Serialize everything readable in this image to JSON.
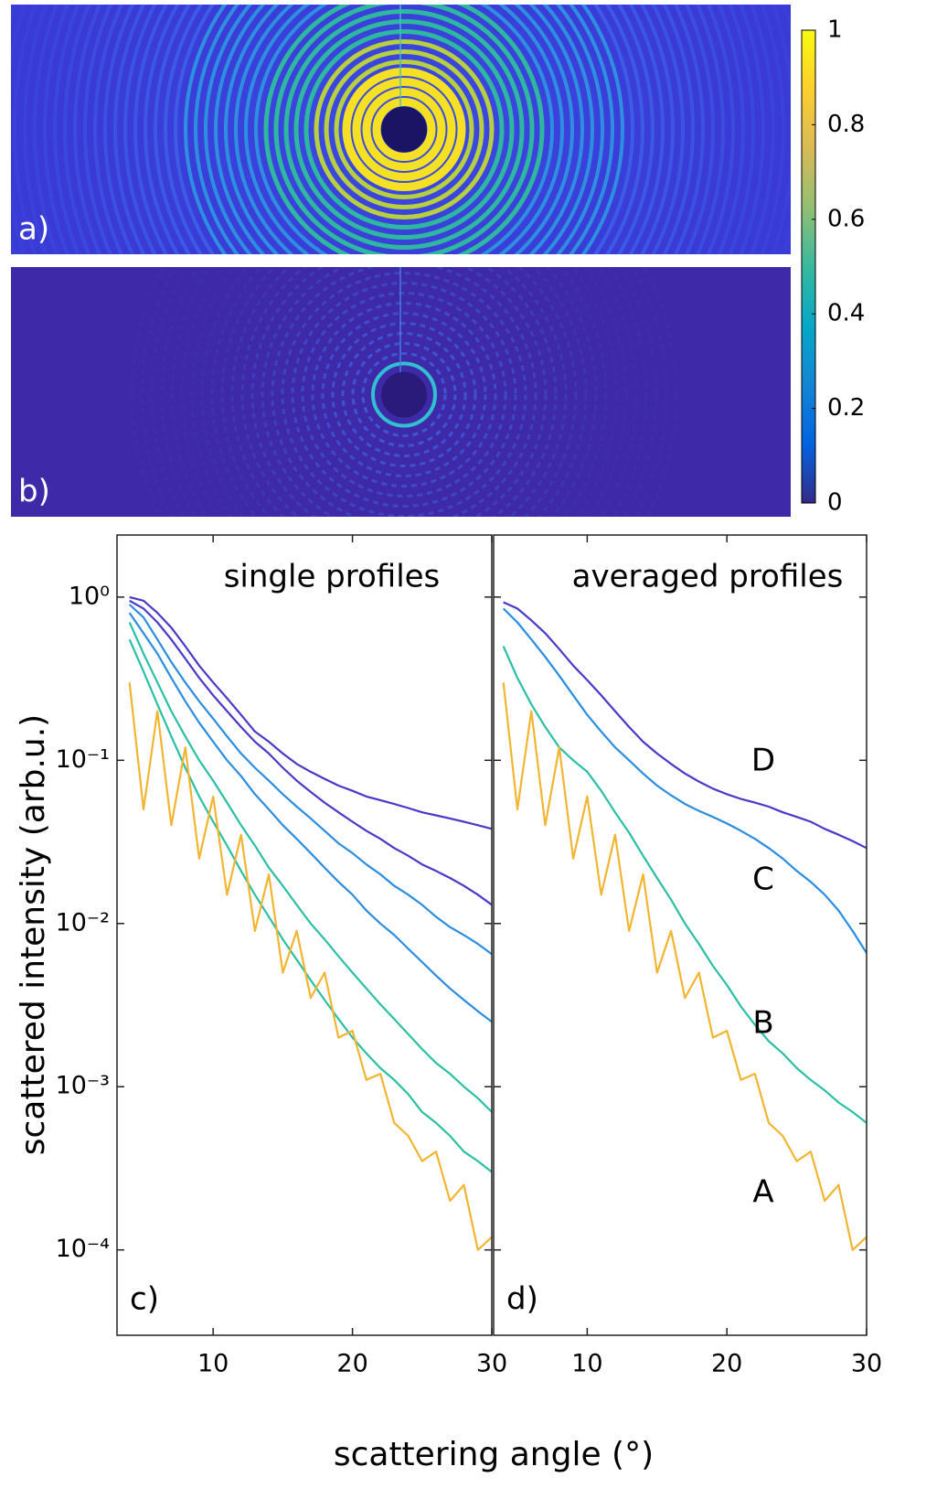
{
  "chart_data": [
    {
      "type": "image",
      "label": "a)"
    },
    {
      "type": "image",
      "label": "b)"
    },
    {
      "type": "colorbar",
      "clim": [
        0,
        1
      ],
      "ticks": [
        0,
        0.2,
        0.4,
        0.6,
        0.8,
        1
      ]
    },
    {
      "type": "line",
      "annotation": "single profiles",
      "label": "c)",
      "ylabel": "scattered intensity (arb.u.)",
      "xlabel": "scattering angle (°)",
      "log_y": true,
      "xlim": [
        3.1,
        30
      ],
      "ylim": [
        3e-05,
        2.4
      ],
      "xticks": [
        10,
        20,
        30
      ],
      "yticks": [
        {
          "value": 0.0001,
          "label": "10⁻⁴"
        },
        {
          "value": 0.001,
          "label": "10⁻³"
        },
        {
          "value": 0.01,
          "label": "10⁻²"
        },
        {
          "value": 0.1,
          "label": "10⁻¹"
        },
        {
          "value": 1,
          "label": "10⁰"
        }
      ],
      "x": [
        4,
        5,
        6,
        7,
        8,
        9,
        10,
        11,
        12,
        13,
        14,
        15,
        16,
        17,
        18,
        19,
        20,
        21,
        22,
        23,
        24,
        25,
        26,
        27,
        28,
        29,
        30
      ],
      "series": [
        {
          "color": "#4a38c9",
          "values": [
            1.0,
            0.95,
            0.8,
            0.65,
            0.5,
            0.38,
            0.3,
            0.24,
            0.19,
            0.15,
            0.13,
            0.11,
            0.095,
            0.085,
            0.077,
            0.07,
            0.065,
            0.06,
            0.057,
            0.054,
            0.051,
            0.048,
            0.046,
            0.044,
            0.042,
            0.04,
            0.038
          ]
        },
        {
          "color": "#4a38c9",
          "values": [
            0.95,
            0.85,
            0.7,
            0.55,
            0.42,
            0.32,
            0.25,
            0.2,
            0.16,
            0.13,
            0.11,
            0.09,
            0.075,
            0.064,
            0.055,
            0.048,
            0.042,
            0.037,
            0.033,
            0.029,
            0.026,
            0.023,
            0.021,
            0.019,
            0.017,
            0.015,
            0.013
          ]
        },
        {
          "color": "#2a8de0",
          "values": [
            0.9,
            0.75,
            0.55,
            0.4,
            0.3,
            0.23,
            0.18,
            0.14,
            0.11,
            0.09,
            0.075,
            0.062,
            0.052,
            0.044,
            0.037,
            0.031,
            0.027,
            0.023,
            0.02,
            0.017,
            0.015,
            0.013,
            0.011,
            0.0095,
            0.0085,
            0.0075,
            0.0065
          ]
        },
        {
          "color": "#2a8de0",
          "values": [
            0.8,
            0.6,
            0.45,
            0.32,
            0.23,
            0.17,
            0.13,
            0.1,
            0.08,
            0.062,
            0.05,
            0.04,
            0.033,
            0.027,
            0.022,
            0.018,
            0.015,
            0.012,
            0.01,
            0.0085,
            0.007,
            0.0058,
            0.0048,
            0.004,
            0.0034,
            0.0029,
            0.0025
          ]
        },
        {
          "color": "#2bbfa5",
          "values": [
            0.7,
            0.45,
            0.3,
            0.2,
            0.14,
            0.1,
            0.075,
            0.055,
            0.04,
            0.03,
            0.022,
            0.017,
            0.013,
            0.01,
            0.008,
            0.0063,
            0.005,
            0.004,
            0.0032,
            0.0026,
            0.0021,
            0.0017,
            0.0014,
            0.0012,
            0.001,
            0.00085,
            0.0007
          ]
        },
        {
          "color": "#2bbfa5",
          "values": [
            0.55,
            0.35,
            0.22,
            0.14,
            0.09,
            0.06,
            0.042,
            0.03,
            0.021,
            0.015,
            0.011,
            0.008,
            0.006,
            0.0045,
            0.0034,
            0.0026,
            0.002,
            0.0016,
            0.0013,
            0.0011,
            0.0009,
            0.0007,
            0.0006,
            0.0005,
            0.0004,
            0.00035,
            0.0003
          ]
        },
        {
          "color": "#f2b531",
          "values": [
            0.3,
            0.05,
            0.2,
            0.04,
            0.12,
            0.025,
            0.06,
            0.015,
            0.035,
            0.009,
            0.02,
            0.005,
            0.009,
            0.0035,
            0.005,
            0.002,
            0.0022,
            0.0011,
            0.0012,
            0.0006,
            0.0005,
            0.00035,
            0.0004,
            0.0002,
            0.00025,
            0.0001,
            0.00012
          ]
        }
      ]
    },
    {
      "type": "line",
      "annotation": "averaged profiles",
      "label": "d)",
      "log_y": true,
      "xlim": [
        3.3,
        30
      ],
      "ylim": [
        3e-05,
        2.4
      ],
      "xticks": [
        10,
        20,
        30
      ],
      "yticks": [
        0.0001,
        0.001,
        0.01,
        0.1,
        1
      ],
      "x": [
        4,
        5,
        6,
        7,
        8,
        9,
        10,
        11,
        12,
        13,
        14,
        15,
        16,
        17,
        18,
        19,
        20,
        21,
        22,
        23,
        24,
        25,
        26,
        27,
        28,
        29,
        30
      ],
      "series": [
        {
          "name": "D",
          "color": "#4a38c9",
          "values": [
            0.93,
            0.85,
            0.72,
            0.6,
            0.48,
            0.38,
            0.31,
            0.25,
            0.2,
            0.16,
            0.13,
            0.11,
            0.095,
            0.083,
            0.074,
            0.067,
            0.062,
            0.058,
            0.055,
            0.052,
            0.048,
            0.045,
            0.042,
            0.038,
            0.035,
            0.032,
            0.029
          ]
        },
        {
          "name": "C",
          "color": "#2a8de0",
          "values": [
            0.85,
            0.7,
            0.55,
            0.43,
            0.33,
            0.25,
            0.19,
            0.15,
            0.12,
            0.1,
            0.083,
            0.07,
            0.061,
            0.054,
            0.049,
            0.045,
            0.041,
            0.037,
            0.033,
            0.029,
            0.025,
            0.021,
            0.018,
            0.015,
            0.012,
            0.009,
            0.0066
          ]
        },
        {
          "name": "B",
          "color": "#2bbfa5",
          "values": [
            0.5,
            0.32,
            0.22,
            0.16,
            0.12,
            0.1,
            0.085,
            0.065,
            0.048,
            0.036,
            0.026,
            0.019,
            0.014,
            0.01,
            0.0075,
            0.0055,
            0.0042,
            0.0031,
            0.0024,
            0.0019,
            0.0016,
            0.0013,
            0.0011,
            0.00095,
            0.0008,
            0.0007,
            0.0006
          ]
        },
        {
          "name": "A",
          "color": "#f2b531",
          "values": [
            0.3,
            0.05,
            0.2,
            0.04,
            0.12,
            0.025,
            0.06,
            0.015,
            0.035,
            0.009,
            0.02,
            0.005,
            0.009,
            0.0035,
            0.005,
            0.002,
            0.0022,
            0.0011,
            0.0012,
            0.0006,
            0.0005,
            0.00035,
            0.0004,
            0.0002,
            0.00025,
            0.0001,
            0.00012
          ]
        }
      ]
    }
  ]
}
